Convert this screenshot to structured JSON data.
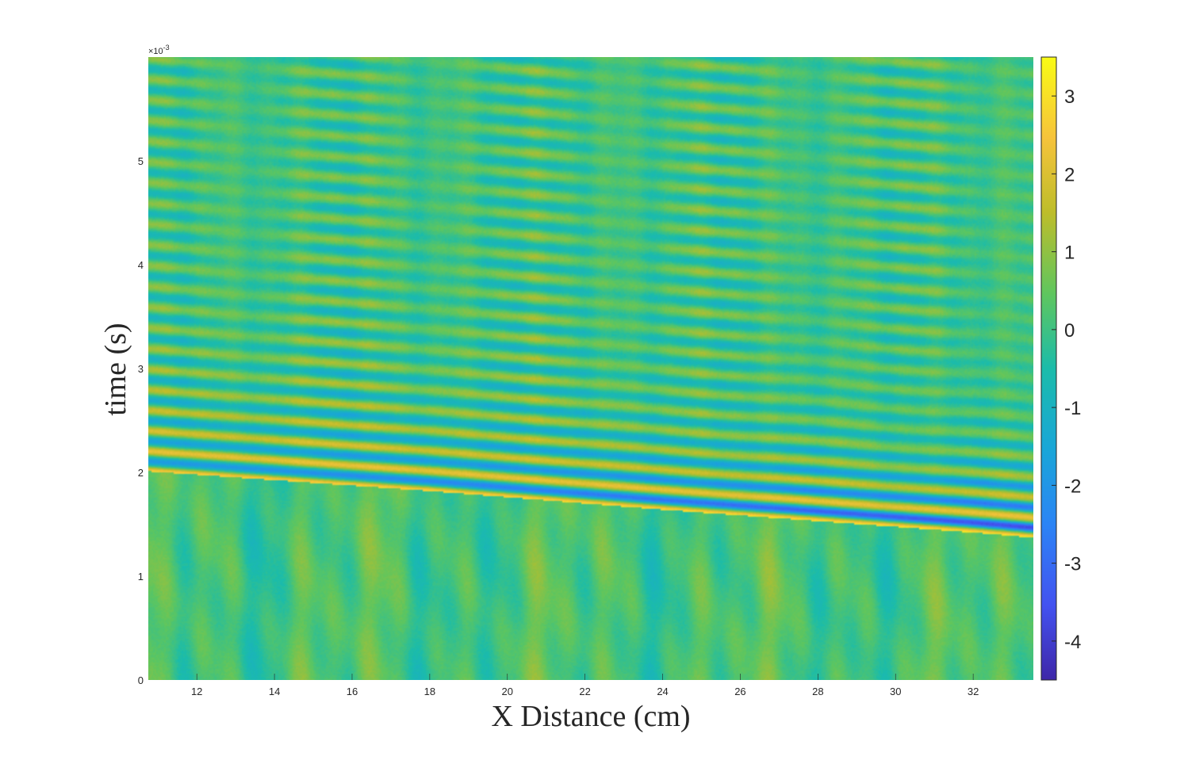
{
  "chart_data": {
    "type": "heatmap",
    "title": "",
    "xlabel": "X Distance (cm)",
    "ylabel": "time (s)",
    "y_exponent_label": "×10",
    "y_exponent_power": "-3",
    "xlim": [
      10.75,
      33.55
    ],
    "ylim": [
      0,
      0.006
    ],
    "x_ticks": [
      12,
      14,
      16,
      18,
      20,
      22,
      24,
      26,
      28,
      30,
      32
    ],
    "x_tick_labels": [
      "12",
      "14",
      "16",
      "18",
      "20",
      "22",
      "24",
      "26",
      "28",
      "30",
      "32"
    ],
    "y_ticks": [
      0,
      0.001,
      0.002,
      0.003,
      0.004,
      0.005
    ],
    "y_tick_labels": [
      "0",
      "1",
      "2",
      "3",
      "4",
      "5"
    ],
    "colorbar": {
      "colormap": "parula",
      "clim": [
        -4.5,
        3.5
      ],
      "ticks": [
        3,
        2,
        1,
        0,
        -1,
        -2,
        -3,
        -4
      ],
      "tick_labels": [
        "3",
        "2",
        "1",
        "0",
        "-1",
        "-2",
        "-3",
        "-4"
      ]
    },
    "wavefront": {
      "description_points_x": [
        10.75,
        18,
        24,
        28,
        32,
        33.55
      ],
      "arrival_time": [
        0.00201,
        0.00182,
        0.00164,
        0.00153,
        0.00142,
        0.00137
      ],
      "oscillation_period": 0.000195,
      "peak_amplitude": 3.0,
      "trough_amplitude": -4.3
    },
    "grid": false,
    "legend": "none"
  }
}
